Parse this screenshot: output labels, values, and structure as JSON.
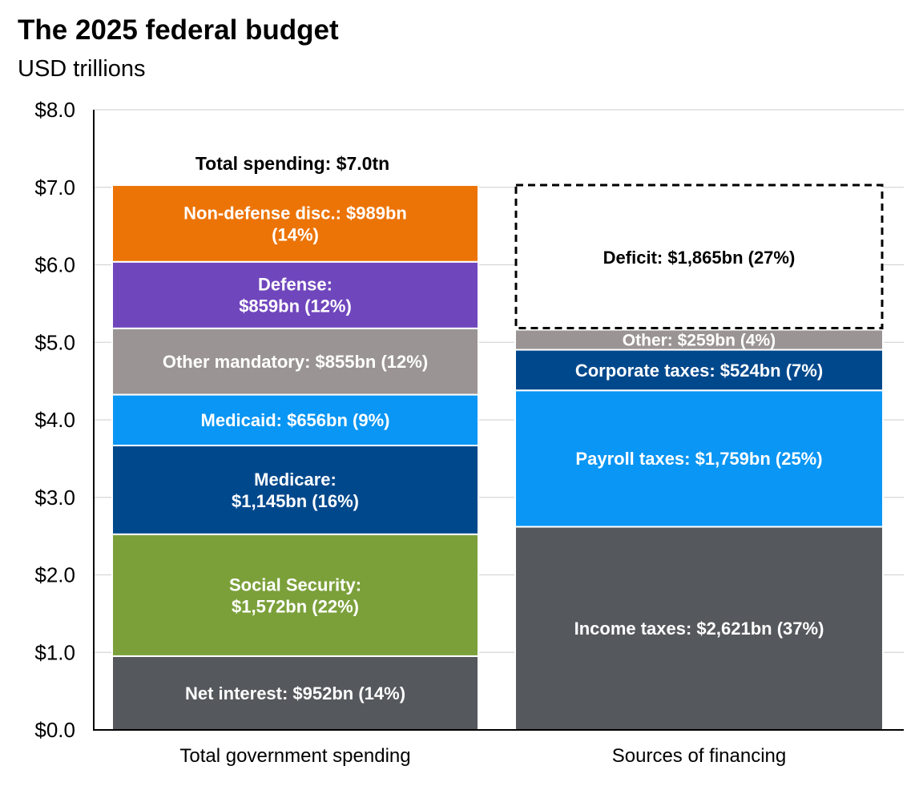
{
  "header": {
    "title": "The 2025 federal budget",
    "subtitle": "USD trillions"
  },
  "chart_data": {
    "type": "stacked-bar",
    "title": "The 2025 federal budget",
    "ylabel": "USD trillions",
    "ylim": [
      0,
      8
    ],
    "yticks": [
      {
        "value": 0,
        "label": "$0.0"
      },
      {
        "value": 1,
        "label": "$1.0"
      },
      {
        "value": 2,
        "label": "$2.0"
      },
      {
        "value": 3,
        "label": "$3.0"
      },
      {
        "value": 4,
        "label": "$4.0"
      },
      {
        "value": 5,
        "label": "$5.0"
      },
      {
        "value": 6,
        "label": "$6.0"
      },
      {
        "value": 7,
        "label": "$7.0"
      },
      {
        "value": 8,
        "label": "$8.0"
      }
    ],
    "grid": true,
    "categories": [
      "Total government spending",
      "Sources of financing"
    ],
    "total_annotation": "Total spending: $7.0tn",
    "bars": [
      {
        "category": "Total government spending",
        "segments": [
          {
            "name": "Net interest",
            "value": 0.952,
            "color": "#55585c",
            "text_color": "#ffffff",
            "lines": [
              "Net interest: $952bn (14%)"
            ]
          },
          {
            "name": "Social Security",
            "value": 1.572,
            "color": "#7ba03a",
            "text_color": "#ffffff",
            "lines": [
              "Social Security:",
              "$1,572bn (22%)"
            ]
          },
          {
            "name": "Medicare",
            "value": 1.145,
            "color": "#00488c",
            "text_color": "#ffffff",
            "lines": [
              "Medicare:",
              "$1,145bn (16%)"
            ]
          },
          {
            "name": "Medicaid",
            "value": 0.656,
            "color": "#0a96f4",
            "text_color": "#ffffff",
            "lines": [
              "Medicaid: $656bn (9%)"
            ]
          },
          {
            "name": "Other mandatory",
            "value": 0.855,
            "color": "#9b9494",
            "text_color": "#ffffff",
            "lines": [
              "Other mandatory: $855bn (12%)"
            ]
          },
          {
            "name": "Defense",
            "value": 0.859,
            "color": "#7046bd",
            "text_color": "#ffffff",
            "lines": [
              "Defense:",
              "$859bn (12%)"
            ]
          },
          {
            "name": "Non-defense disc.",
            "value": 0.989,
            "color": "#ec7406",
            "text_color": "#ffffff",
            "lines": [
              "Non-defense disc.: $989bn",
              "(14%)"
            ]
          }
        ]
      },
      {
        "category": "Sources of financing",
        "segments": [
          {
            "name": "Income taxes",
            "value": 2.621,
            "color": "#55585c",
            "text_color": "#ffffff",
            "lines": [
              "Income taxes: $2,621bn (37%)"
            ]
          },
          {
            "name": "Payroll taxes",
            "value": 1.759,
            "color": "#0a96f4",
            "text_color": "#ffffff",
            "lines": [
              "Payroll taxes: $1,759bn (25%)"
            ]
          },
          {
            "name": "Corporate taxes",
            "value": 0.524,
            "color": "#00488c",
            "text_color": "#ffffff",
            "lines": [
              "Corporate taxes: $524bn (7%)"
            ]
          },
          {
            "name": "Other",
            "value": 0.259,
            "color": "#9b9494",
            "text_color": "#ffffff",
            "lines": [
              "Other: $259bn (4%)"
            ]
          },
          {
            "name": "Deficit",
            "value": 1.865,
            "color": "#ffffff",
            "text_color": "#000000",
            "dashed": true,
            "lines": [
              "Deficit: $1,865bn (27%)"
            ]
          }
        ]
      }
    ]
  }
}
